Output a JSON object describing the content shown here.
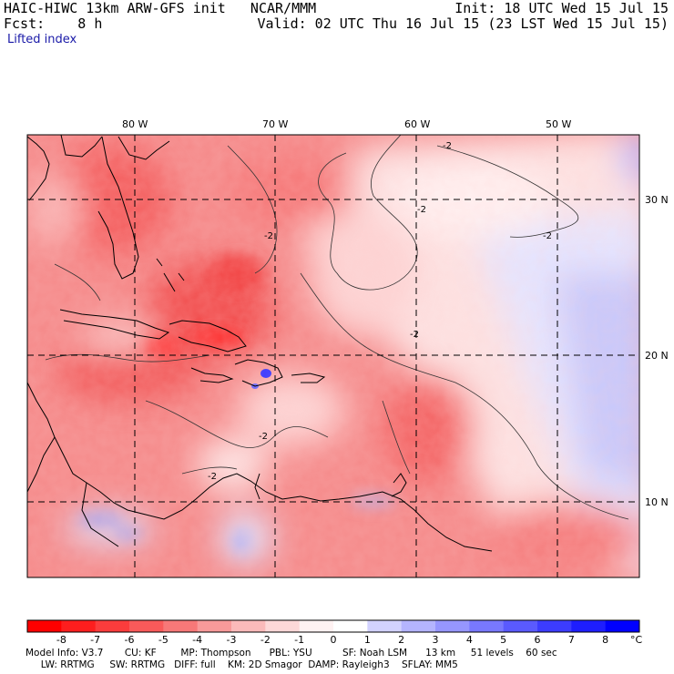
{
  "header": {
    "title_left": "HAIC-HIWC 13km ARW-GFS init   NCAR/MMM",
    "fcst": "Fcst:    8 h",
    "init": "Init: 18 UTC Wed 15 Jul 15",
    "valid": "Valid: 02 UTC Thu 16 Jul 15 (23 LST Wed 15 Jul 15)",
    "field": "Lifted index"
  },
  "map": {
    "lon_labels": [
      "80 W",
      "70 W",
      "60 W",
      "50 W"
    ],
    "lat_labels": [
      "30 N",
      "20 N",
      "10 N"
    ],
    "contour_labels": [
      "-2",
      "-2",
      "-2",
      "-2",
      "-2",
      "-2",
      "-2"
    ],
    "colors": {
      "strong_negative": "#ff1a1a",
      "negative": "#f46a6a",
      "weak_negative": "#fbc3c3",
      "neutral": "#fff5f5",
      "positive": "#c8c8ff",
      "strong_positive": "#3f3ff2"
    }
  },
  "colorbar": {
    "tick_labels": [
      "-8",
      "-7",
      "-6",
      "-5",
      "-4",
      "-3",
      "-2",
      "-1",
      "0",
      "1",
      "2",
      "3",
      "4",
      "5",
      "6",
      "7",
      "8"
    ],
    "unit": "°C",
    "colors": [
      "#ff0000",
      "#fd1e1e",
      "#fb3c3c",
      "#f95a5a",
      "#f77878",
      "#f89a9a",
      "#fbbaba",
      "#fdd8d8",
      "#fff2f2",
      "#ffffff",
      "#d2d2ff",
      "#b4b4ff",
      "#9696ff",
      "#7878ff",
      "#5a5aff",
      "#3c3cff",
      "#1e1eff",
      "#0000ff"
    ]
  },
  "model_info": {
    "line1": "Model Info: V3.7       CU: KF        MP: Thompson      PBL: YSU          SF: Noah LSM      13 km     51 levels    60 sec",
    "line2": "     LW: RRTMG     SW: RRTMG   DIFF: full    KM: 2D Smagor  DAMP: Rayleigh3    SFLAY: MM5"
  }
}
